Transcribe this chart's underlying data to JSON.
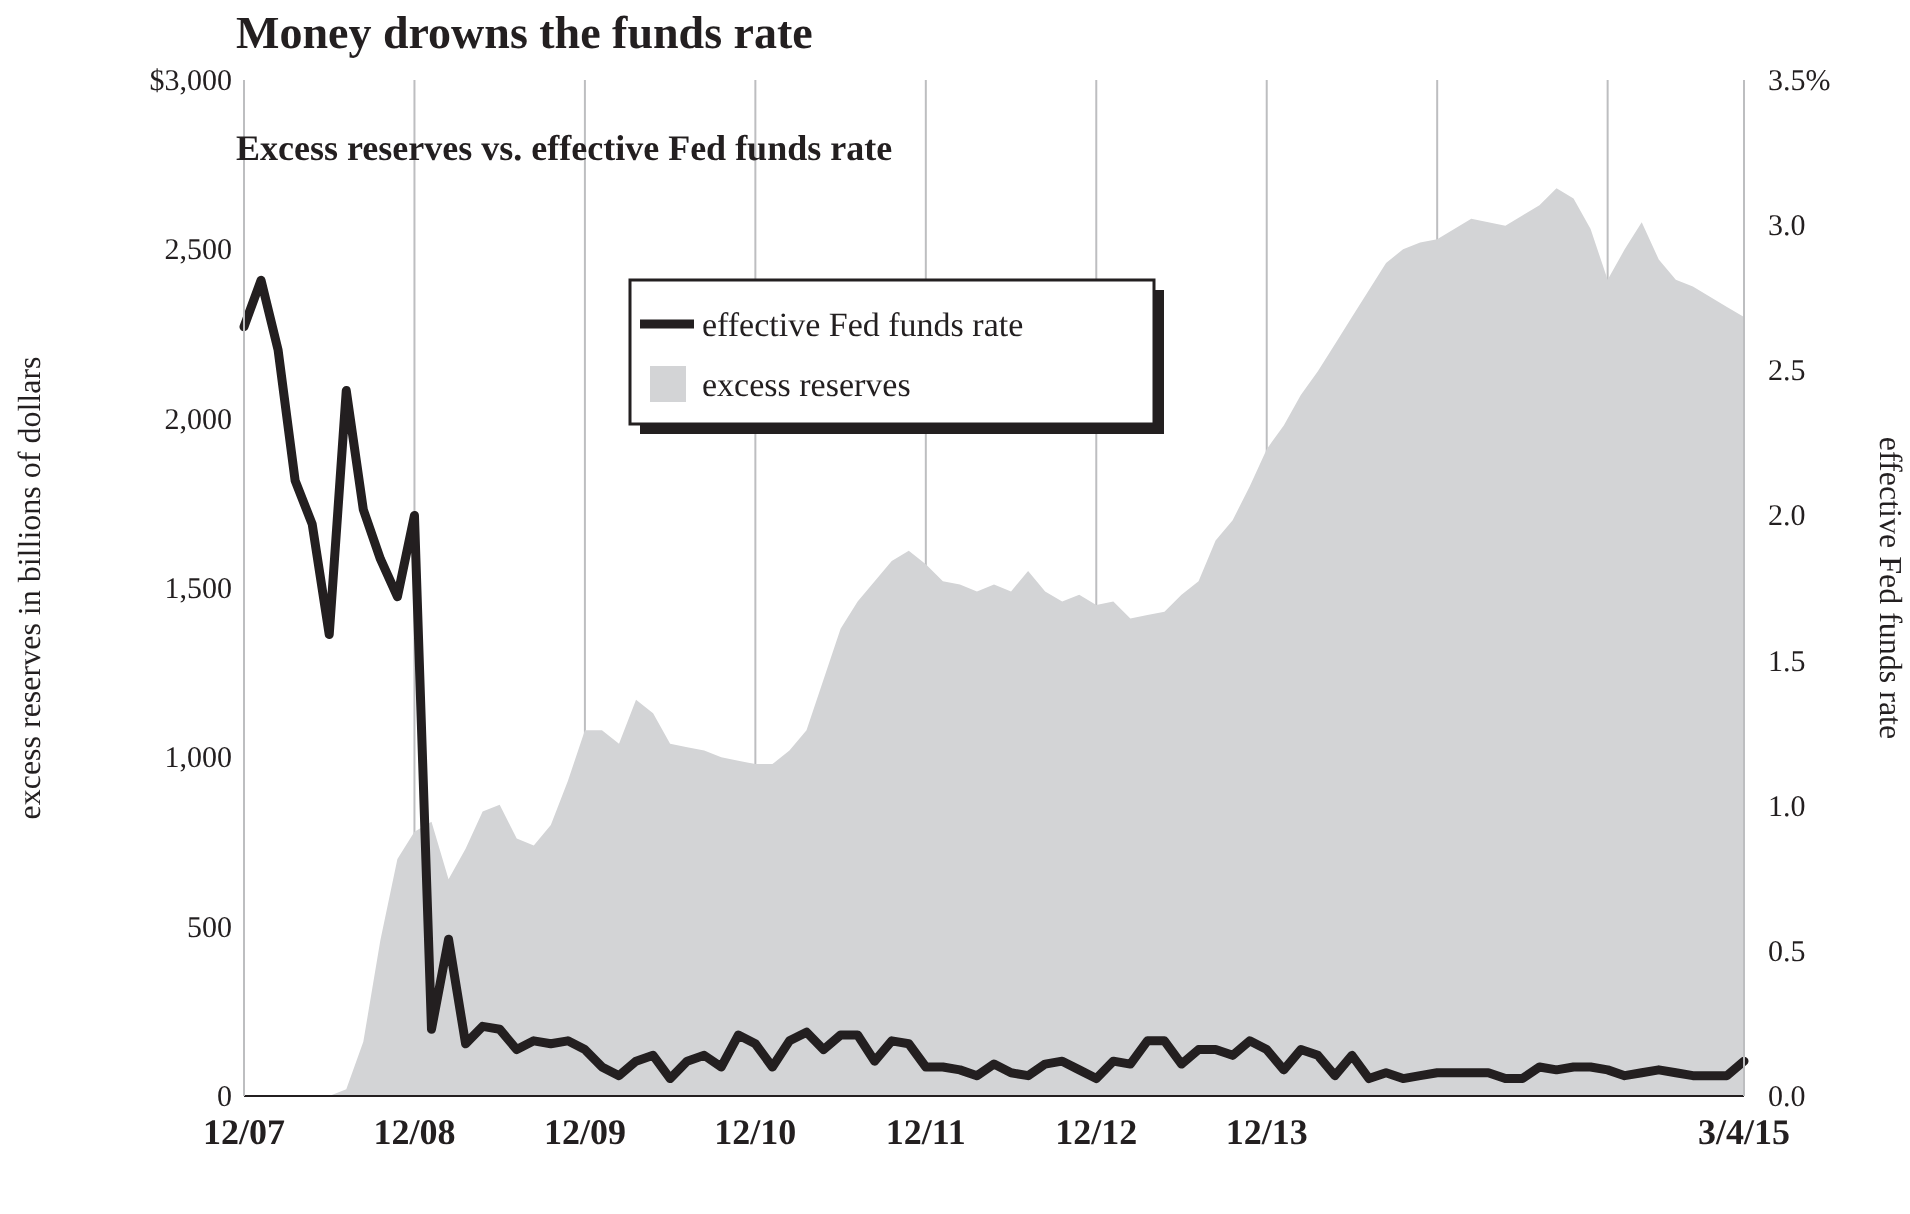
{
  "chart_data": {
    "type": "area",
    "title": "Money drowns the funds rate",
    "subtitle": "Excess reserves vs. effective Fed funds rate",
    "ylabel": "excess reserves in billions of dollars",
    "y2label": "effective Fed funds rate",
    "categories": [
      "12/07",
      null,
      null,
      null,
      null,
      null,
      null,
      null,
      null,
      null,
      "12/08",
      null,
      null,
      null,
      null,
      null,
      null,
      null,
      null,
      null,
      "12/09",
      null,
      null,
      null,
      null,
      null,
      null,
      null,
      null,
      null,
      "12/10",
      null,
      null,
      null,
      null,
      null,
      null,
      null,
      null,
      null,
      "12/11",
      null,
      null,
      null,
      null,
      null,
      null,
      null,
      null,
      null,
      "12/12",
      null,
      null,
      null,
      null,
      null,
      null,
      null,
      null,
      null,
      "12/13",
      null,
      null,
      null,
      null,
      null,
      null,
      null,
      null,
      null,
      null,
      null,
      null,
      null,
      null,
      null,
      null,
      null,
      null,
      null,
      null,
      null,
      null,
      null,
      null,
      null,
      null,
      null,
      "3/4/15"
    ],
    "ylim": [
      0,
      3000
    ],
    "yticks": [
      {
        "value": 0,
        "label": "0"
      },
      {
        "value": 500,
        "label": "500"
      },
      {
        "value": 1000,
        "label": "1,000"
      },
      {
        "value": 1500,
        "label": "1,500"
      },
      {
        "value": 2000,
        "label": "2,000"
      },
      {
        "value": 2500,
        "label": "2,500"
      },
      {
        "value": 3000,
        "label": "$3,000"
      }
    ],
    "y2lim": [
      0,
      3.5
    ],
    "y2ticks": [
      {
        "value": 0,
        "label": "0.0"
      },
      {
        "value": 0.5,
        "label": "0.5"
      },
      {
        "value": 1,
        "label": "1.0"
      },
      {
        "value": 1.5,
        "label": "1.5"
      },
      {
        "value": 2,
        "label": "2.0"
      },
      {
        "value": 2.5,
        "label": "2.5"
      },
      {
        "value": 3,
        "label": "3.0"
      },
      {
        "value": 3.5,
        "label": "3.5%"
      }
    ],
    "grid": "x",
    "legend": "top",
    "series": [
      {
        "name": "effective Fed funds rate",
        "type": "line",
        "axis": "y2",
        "color": "#231f20",
        "values": [
          2.65,
          2.81,
          2.57,
          2.12,
          1.97,
          1.59,
          2.43,
          2.02,
          1.85,
          1.72,
          2.0,
          0.23,
          0.54,
          0.18,
          0.24,
          0.23,
          0.16,
          0.19,
          0.18,
          0.19,
          0.16,
          0.1,
          0.07,
          0.12,
          0.14,
          0.06,
          0.12,
          0.14,
          0.1,
          0.21,
          0.18,
          0.1,
          0.19,
          0.22,
          0.16,
          0.21,
          0.21,
          0.12,
          0.19,
          0.18,
          0.1,
          0.1,
          0.09,
          0.07,
          0.11,
          0.08,
          0.07,
          0.11,
          0.12,
          0.09,
          0.06,
          0.12,
          0.11,
          0.19,
          0.19,
          0.11,
          0.16,
          0.16,
          0.14,
          0.19,
          0.16,
          0.09,
          0.16,
          0.14,
          0.07,
          0.14,
          0.06,
          0.08,
          0.06,
          0.07,
          0.08,
          0.08,
          0.08,
          0.08,
          0.06,
          0.06,
          0.1,
          0.09,
          0.1,
          0.1,
          0.09,
          0.07,
          0.08,
          0.09,
          0.08,
          0.07,
          0.07,
          0.07,
          0.12
        ]
      },
      {
        "name": "excess reserves",
        "color": "#d3d4d6",
        "values": [
          0,
          0,
          0,
          0,
          0,
          0,
          20,
          160,
          460,
          700,
          780,
          810,
          640,
          730,
          840,
          860,
          760,
          740,
          800,
          930,
          1080,
          1080,
          1040,
          1170,
          1130,
          1040,
          1030,
          1020,
          1000,
          990,
          980,
          980,
          1020,
          1080,
          1230,
          1380,
          1460,
          1520,
          1580,
          1610,
          1570,
          1520,
          1510,
          1490,
          1510,
          1490,
          1550,
          1490,
          1460,
          1480,
          1450,
          1460,
          1410,
          1420,
          1430,
          1480,
          1520,
          1640,
          1700,
          1800,
          1910,
          1980,
          2070,
          2140,
          2220,
          2300,
          2380,
          2460,
          2500,
          2520,
          2530,
          2560,
          2590,
          2580,
          2570,
          2600,
          2630,
          2680,
          2650,
          2560,
          2410,
          2500,
          2580,
          2470,
          2410,
          2390,
          2360,
          2330,
          2300
        ]
      }
    ]
  }
}
